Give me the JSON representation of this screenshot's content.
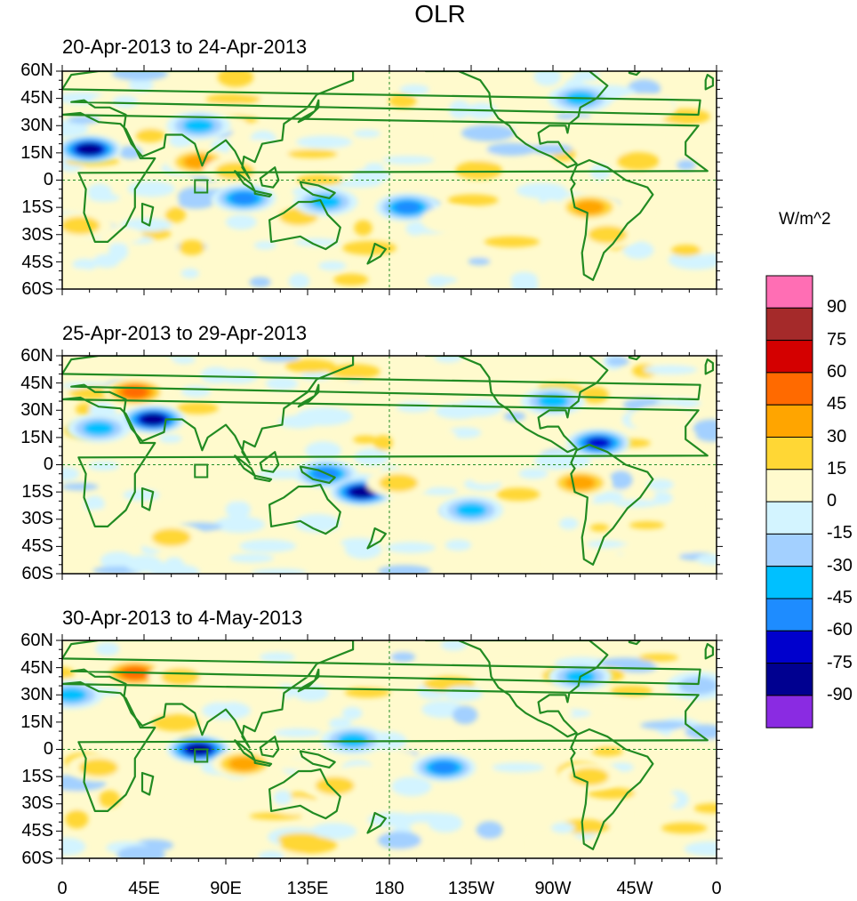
{
  "title": "OLR",
  "units": "W/m^2",
  "panels": [
    {
      "label": "20-Apr-2013 to 24-Apr-2013"
    },
    {
      "label": "25-Apr-2013 to 29-Apr-2013"
    },
    {
      "label": "30-Apr-2013 to 4-May-2013"
    }
  ],
  "lat_labels": [
    "60N",
    "45N",
    "30N",
    "15N",
    "0",
    "15S",
    "30S",
    "45S",
    "60S"
  ],
  "lon_labels": [
    "0",
    "45E",
    "90E",
    "135E",
    "180",
    "135W",
    "90W",
    "45W",
    "0"
  ],
  "colorbar": {
    "levels": [
      "90",
      "75",
      "60",
      "45",
      "30",
      "15",
      "0",
      "-15",
      "-30",
      "-45",
      "-60",
      "-75",
      "-90"
    ],
    "colors": [
      "#ff6eb4",
      "#a52a2a",
      "#d40000",
      "#ff6a00",
      "#ffa500",
      "#ffd735",
      "#fffacd",
      "#d3f4ff",
      "#a3d0ff",
      "#00c0ff",
      "#1e8cff",
      "#0000cd",
      "#000090",
      "#8a2be2"
    ]
  },
  "anomalies": [
    [
      {
        "lon": 15,
        "lat": 17,
        "v": -90
      },
      {
        "lon": 75,
        "lat": 30,
        "v": -45
      },
      {
        "lon": 75,
        "lat": 10,
        "v": 45
      },
      {
        "lon": 95,
        "lat": 5,
        "v": 30
      },
      {
        "lon": 100,
        "lat": -10,
        "v": -60
      },
      {
        "lon": 130,
        "lat": -20,
        "v": 30
      },
      {
        "lon": 145,
        "lat": -12,
        "v": -45
      },
      {
        "lon": 190,
        "lat": -15,
        "v": -60
      },
      {
        "lon": 215,
        "lat": -22,
        "v": 15
      },
      {
        "lon": 290,
        "lat": -15,
        "v": 45
      },
      {
        "lon": 300,
        "lat": -30,
        "v": 30
      },
      {
        "lon": 285,
        "lat": 45,
        "v": -45
      },
      {
        "lon": 10,
        "lat": -25,
        "v": 30
      },
      {
        "lon": 320,
        "lat": 40,
        "v": 15
      }
    ],
    [
      {
        "lon": 40,
        "lat": 40,
        "v": 60
      },
      {
        "lon": 50,
        "lat": 25,
        "v": -90
      },
      {
        "lon": 145,
        "lat": -5,
        "v": -60
      },
      {
        "lon": 165,
        "lat": -15,
        "v": -90
      },
      {
        "lon": 185,
        "lat": -10,
        "v": 30
      },
      {
        "lon": 225,
        "lat": -25,
        "v": -45
      },
      {
        "lon": 295,
        "lat": 12,
        "v": -75
      },
      {
        "lon": 285,
        "lat": -10,
        "v": 45
      },
      {
        "lon": 270,
        "lat": 35,
        "v": -45
      },
      {
        "lon": 330,
        "lat": 25,
        "v": 15
      },
      {
        "lon": 60,
        "lat": -40,
        "v": 30
      },
      {
        "lon": 20,
        "lat": 20,
        "v": -45
      }
    ],
    [
      {
        "lon": 40,
        "lat": 42,
        "v": 60
      },
      {
        "lon": 65,
        "lat": 40,
        "v": 30
      },
      {
        "lon": 75,
        "lat": 0,
        "v": -90
      },
      {
        "lon": 100,
        "lat": -8,
        "v": 45
      },
      {
        "lon": 150,
        "lat": -20,
        "v": 30
      },
      {
        "lon": 160,
        "lat": 5,
        "v": -45
      },
      {
        "lon": 210,
        "lat": -10,
        "v": -60
      },
      {
        "lon": 285,
        "lat": 40,
        "v": -45
      },
      {
        "lon": 290,
        "lat": -15,
        "v": 30
      },
      {
        "lon": 20,
        "lat": -10,
        "v": 30
      },
      {
        "lon": 350,
        "lat": 35,
        "v": -30
      },
      {
        "lon": 5,
        "lat": 30,
        "v": -45
      }
    ]
  ]
}
